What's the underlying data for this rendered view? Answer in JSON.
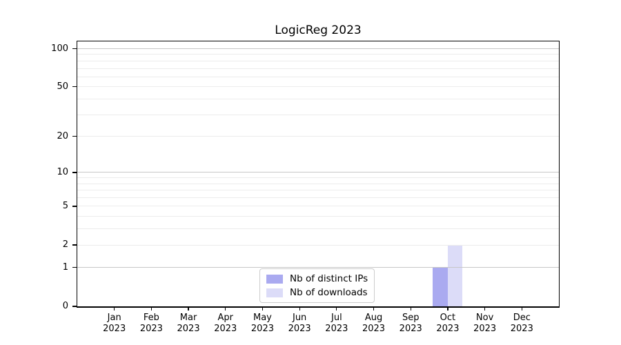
{
  "chart_data": {
    "type": "bar",
    "title": "LogicReg 2023",
    "categories": [
      "Jan",
      "Feb",
      "Mar",
      "Apr",
      "May",
      "Jun",
      "Jul",
      "Aug",
      "Sep",
      "Oct",
      "Nov",
      "Dec"
    ],
    "x_year_label": "2023",
    "series": [
      {
        "name": "Nb of distinct IPs",
        "color": "#aaaaf0",
        "values": [
          0,
          0,
          0,
          0,
          0,
          0,
          0,
          0,
          0,
          1,
          0,
          0
        ]
      },
      {
        "name": "Nb of downloads",
        "color": "#dcdcf8",
        "values": [
          0,
          0,
          0,
          0,
          0,
          0,
          0,
          0,
          0,
          2,
          0,
          0
        ]
      }
    ],
    "yscale": "log1p",
    "ylim": [
      0,
      114
    ],
    "yticks": [
      0,
      1,
      2,
      5,
      10,
      20,
      50,
      100
    ],
    "major_gridlines": [
      1,
      10,
      100
    ],
    "minor_gridlines": [
      2,
      3,
      4,
      5,
      6,
      7,
      8,
      9,
      20,
      30,
      40,
      50,
      60,
      70,
      80,
      90
    ],
    "grid_major_color": "#c6c6c6",
    "grid_minor_color": "#ececec",
    "legend_position": "lower center"
  }
}
